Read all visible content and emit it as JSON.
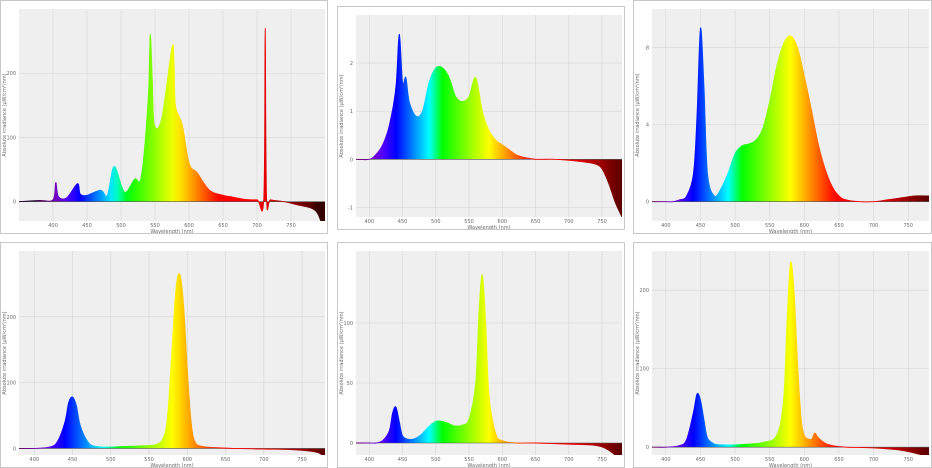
{
  "chart_data": [
    {
      "type": "area",
      "xlabel": "Wavelength (nm)",
      "ylabel": "Absolute irradiance (µW/cm²/nm)",
      "xlim": [
        350,
        800
      ],
      "ylim": [
        -30,
        300
      ],
      "grid": true,
      "x_ticks": [
        "400",
        "450",
        "500",
        "550",
        "600",
        "650",
        "700",
        "750"
      ],
      "y_ticks": [
        "0",
        "100",
        "200"
      ],
      "x": [
        350,
        380,
        400,
        404,
        408,
        420,
        436,
        440,
        450,
        470,
        480,
        490,
        505,
        520,
        530,
        540,
        543,
        546,
        549,
        560,
        575,
        578,
        580,
        590,
        600,
        612,
        630,
        650,
        660,
        680,
        700,
        710,
        712,
        714,
        720,
        740,
        760,
        780,
        790,
        800
      ],
      "values": [
        0,
        2,
        3,
        30,
        8,
        6,
        28,
        12,
        10,
        18,
        10,
        55,
        15,
        35,
        40,
        160,
        260,
        190,
        120,
        130,
        240,
        215,
        150,
        120,
        60,
        45,
        18,
        10,
        8,
        4,
        3,
        6,
        270,
        8,
        3,
        0,
        -5,
        -10,
        -20,
        -50
      ]
    },
    {
      "type": "area",
      "xlabel": "Wavelength (nm)",
      "ylabel": "Absolute irradiance (µW/cm²/nm)",
      "xlim": [
        380,
        780
      ],
      "ylim": [
        -1.2,
        3
      ],
      "grid": true,
      "x_ticks": [
        "400",
        "450",
        "500",
        "550",
        "600",
        "650",
        "700",
        "750"
      ],
      "y_ticks": [
        "-1",
        "0",
        "1",
        "2"
      ],
      "x": [
        380,
        400,
        410,
        420,
        430,
        440,
        445,
        450,
        455,
        460,
        470,
        480,
        490,
        500,
        510,
        520,
        530,
        540,
        550,
        560,
        570,
        580,
        590,
        600,
        610,
        620,
        630,
        640,
        650,
        660,
        680,
        700,
        720,
        740,
        750,
        760,
        770,
        780
      ],
      "values": [
        0,
        0,
        0.1,
        0.3,
        0.7,
        1.5,
        2.6,
        1.6,
        1.7,
        1.2,
        0.9,
        1.0,
        1.6,
        1.9,
        1.9,
        1.7,
        1.3,
        1.2,
        1.3,
        1.7,
        1.0,
        0.6,
        0.4,
        0.3,
        0.2,
        0.1,
        0.05,
        0.02,
        0,
        0,
        0,
        -0.02,
        -0.05,
        -0.1,
        -0.2,
        -0.5,
        -0.9,
        -1.2
      ]
    },
    {
      "type": "area",
      "xlabel": "Wavelength (nm)",
      "ylabel": "Absolute irradiance (µW/cm²/nm)",
      "xlim": [
        380,
        780
      ],
      "ylim": [
        -1,
        10
      ],
      "grid": true,
      "x_ticks": [
        "400",
        "450",
        "500",
        "550",
        "600",
        "650",
        "700",
        "750"
      ],
      "y_ticks": [
        "0",
        "4",
        "8"
      ],
      "x": [
        380,
        400,
        410,
        420,
        430,
        440,
        445,
        450,
        455,
        460,
        470,
        480,
        490,
        500,
        510,
        520,
        530,
        540,
        550,
        560,
        570,
        580,
        590,
        600,
        610,
        620,
        630,
        640,
        650,
        660,
        680,
        700,
        720,
        740,
        760,
        780
      ],
      "values": [
        0,
        0,
        0,
        0.1,
        0.3,
        1.5,
        4.5,
        9.0,
        6.0,
        1.5,
        0.3,
        0.7,
        1.5,
        2.5,
        2.9,
        3.0,
        3.2,
        3.8,
        5.2,
        7.0,
        8.2,
        8.6,
        8.0,
        6.5,
        4.8,
        3.0,
        1.7,
        0.8,
        0.3,
        0.1,
        0,
        0,
        0.1,
        0.2,
        0.3,
        0.3
      ]
    },
    {
      "type": "area",
      "xlabel": "Wavelength (nm)",
      "ylabel": "Absolute irradiance (µW/cm²/nm)",
      "xlim": [
        380,
        780
      ],
      "ylim": [
        -10,
        300
      ],
      "grid": true,
      "x_ticks": [
        "400",
        "450",
        "500",
        "550",
        "600",
        "650",
        "700",
        "750"
      ],
      "y_ticks": [
        "0",
        "100",
        "200"
      ],
      "x": [
        380,
        400,
        420,
        430,
        440,
        445,
        450,
        455,
        460,
        470,
        480,
        500,
        520,
        540,
        560,
        570,
        575,
        580,
        585,
        590,
        595,
        600,
        605,
        610,
        620,
        640,
        660,
        700,
        740,
        770,
        780
      ],
      "values": [
        0,
        0,
        2,
        10,
        40,
        70,
        78,
        65,
        35,
        10,
        3,
        2,
        3,
        4,
        6,
        20,
        60,
        150,
        240,
        265,
        220,
        120,
        40,
        10,
        3,
        1,
        0,
        -1,
        -2,
        -6,
        -15
      ]
    },
    {
      "type": "area",
      "xlabel": "Wavelength (nm)",
      "ylabel": "Absolute irradiance (µW/cm²/nm)",
      "xlim": [
        380,
        780
      ],
      "ylim": [
        -10,
        160
      ],
      "grid": true,
      "x_ticks": [
        "400",
        "450",
        "500",
        "550",
        "600",
        "650",
        "700",
        "750"
      ],
      "y_ticks": [
        "0",
        "50",
        "100"
      ],
      "x": [
        380,
        400,
        410,
        420,
        430,
        435,
        440,
        445,
        450,
        460,
        470,
        480,
        490,
        500,
        510,
        520,
        530,
        540,
        550,
        560,
        565,
        570,
        575,
        580,
        590,
        600,
        620,
        650,
        700,
        740,
        760,
        780
      ],
      "values": [
        0,
        0,
        0,
        2,
        10,
        25,
        30,
        18,
        6,
        3,
        4,
        8,
        14,
        18,
        18,
        16,
        14,
        15,
        20,
        50,
        110,
        140,
        100,
        40,
        8,
        2,
        0,
        0,
        -1,
        -2,
        -6,
        -15
      ]
    },
    {
      "type": "area",
      "xlabel": "Wavelength (nm)",
      "ylabel": "Absolute irradiance (µW/cm²/nm)",
      "xlim": [
        380,
        780
      ],
      "ylim": [
        -10,
        250
      ],
      "grid": true,
      "x_ticks": [
        "400",
        "450",
        "500",
        "550",
        "600",
        "650",
        "700",
        "750"
      ],
      "y_ticks": [
        "0",
        "100",
        "200"
      ],
      "x": [
        380,
        400,
        420,
        430,
        440,
        445,
        450,
        455,
        460,
        470,
        480,
        500,
        520,
        540,
        560,
        570,
        575,
        580,
        585,
        590,
        595,
        600,
        610,
        615,
        620,
        630,
        640,
        660,
        700,
        740,
        770,
        780
      ],
      "values": [
        0,
        0,
        2,
        10,
        45,
        68,
        60,
        35,
        12,
        4,
        3,
        3,
        4,
        6,
        15,
        60,
        160,
        235,
        200,
        110,
        40,
        15,
        10,
        18,
        12,
        5,
        2,
        0,
        -1,
        -4,
        -10,
        -14
      ]
    }
  ]
}
